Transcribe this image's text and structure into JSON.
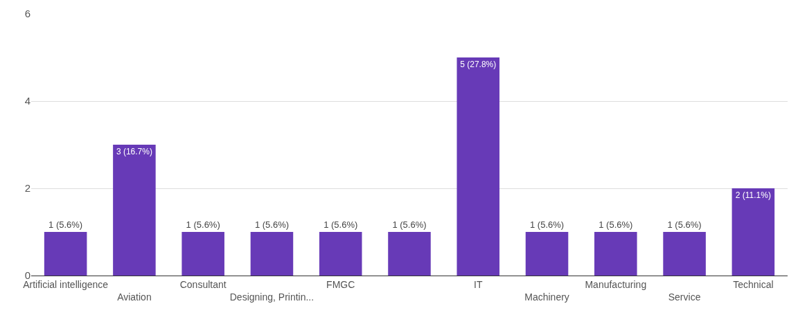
{
  "chart_data": {
    "type": "bar",
    "categories": [
      "Artificial intelligence",
      "Aviation",
      "Consultant",
      "Designing, Printin...",
      "FMGC",
      null,
      "IT",
      "Machinery",
      "Manufacturing",
      "Service",
      "Technical"
    ],
    "values": [
      1,
      3,
      1,
      1,
      1,
      1,
      5,
      1,
      1,
      1,
      2
    ],
    "value_labels": [
      "1 (5.6%)",
      "3 (16.7%)",
      "1 (5.6%)",
      "1 (5.6%)",
      "1 (5.6%)",
      "1 (5.6%)",
      "5 (27.8%)",
      "1 (5.6%)",
      "1 (5.6%)",
      "1 (5.6%)",
      "2 (11.1%)"
    ],
    "color": "#673ab7",
    "ylim": [
      0,
      6
    ],
    "yticks": [
      0,
      2,
      4,
      6
    ],
    "grid": "y",
    "legend": false
  }
}
